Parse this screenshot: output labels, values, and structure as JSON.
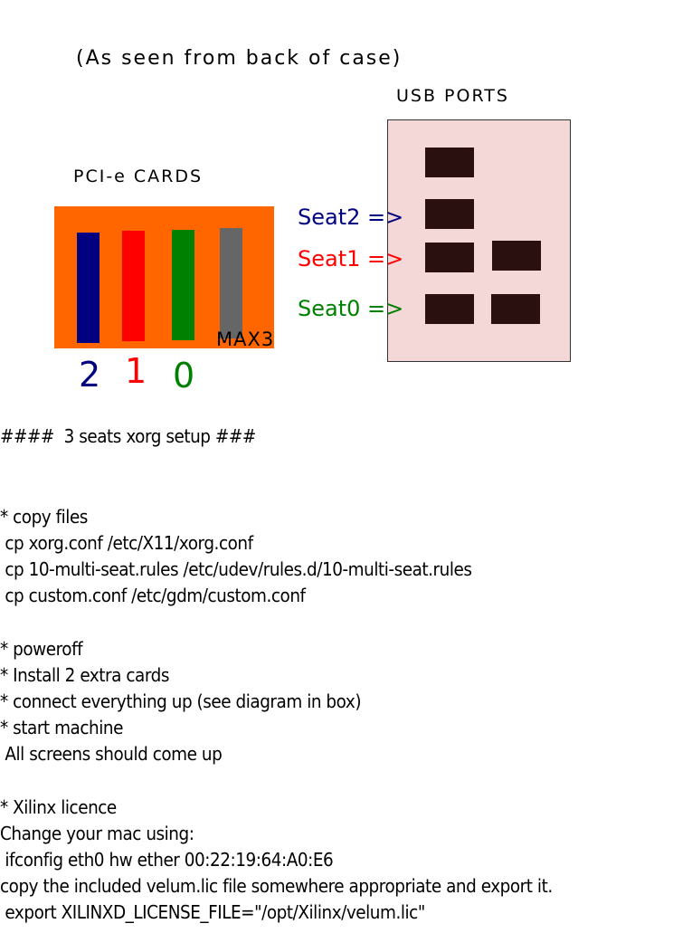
{
  "header": {
    "subtitle": "(As seen from back of case)",
    "usb_title": "USB PORTS",
    "pci_title": "PCI-e CARDS"
  },
  "pci": {
    "box_color": "#ff6600",
    "cards": [
      {
        "name": "card-2",
        "color": "#000080"
      },
      {
        "name": "card-1",
        "color": "#ff0000"
      },
      {
        "name": "card-0",
        "color": "#008000"
      },
      {
        "name": "card-max3",
        "color": "#666666"
      }
    ],
    "max_label": "MAX3",
    "numbers": [
      {
        "label": "2",
        "color": "#000080"
      },
      {
        "label": "1",
        "color": "#ff0000"
      },
      {
        "label": "0",
        "color": "#008000"
      }
    ]
  },
  "usb": {
    "box_color": "#f4d7d7",
    "port_color": "#2b1010",
    "seats": [
      {
        "label": "Seat2 =>",
        "color": "#000080"
      },
      {
        "label": "Seat1 =>",
        "color": "#ff0000"
      },
      {
        "label": "Seat0 =>",
        "color": "#008000"
      }
    ]
  },
  "instructions": {
    "heading": "####  3 seats xorg setup ###",
    "lines": [
      "* copy files",
      " cp xorg.conf /etc/X11/xorg.conf",
      " cp 10-multi-seat.rules /etc/udev/rules.d/10-multi-seat.rules",
      " cp custom.conf /etc/gdm/custom.conf",
      "* poweroff",
      "* Install 2 extra cards",
      "* connect everything up (see diagram in box)",
      "* start machine",
      " All screens should come up",
      "* Xilinx licence",
      "Change your mac using:",
      " ifconfig eth0 hw ether 00:22:19:64:A0:E6",
      "copy the included velum.lic file somewhere appropriate and export it.",
      " export XILINXD_LICENSE_FILE=\"/opt/Xilinx/velum.lic\""
    ]
  }
}
